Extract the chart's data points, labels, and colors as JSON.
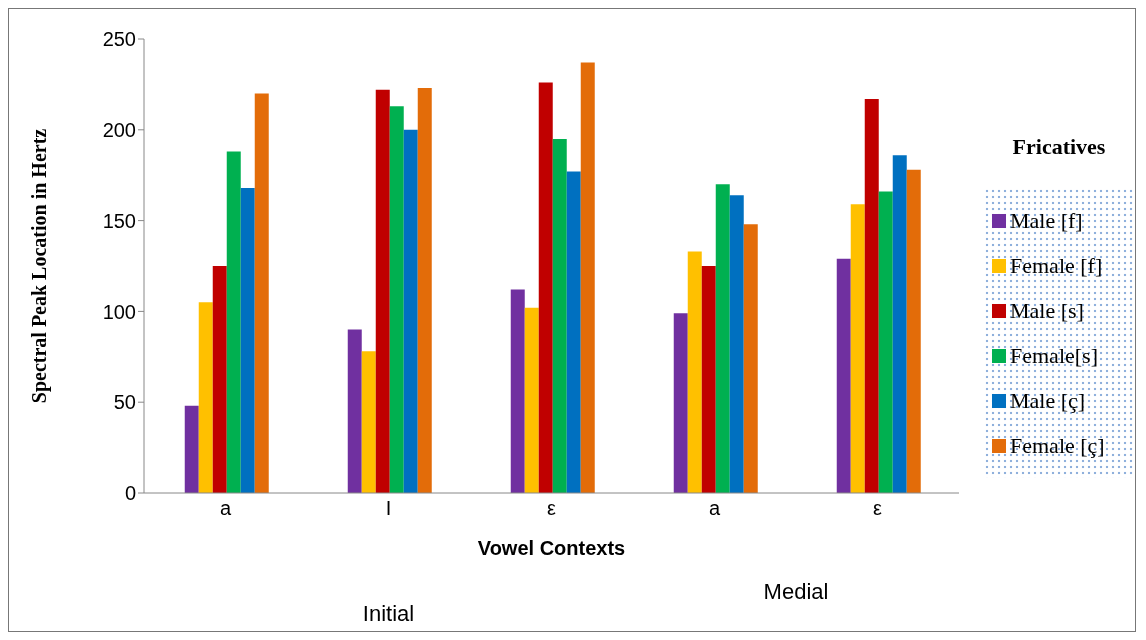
{
  "chart_data": {
    "type": "bar",
    "ylabel": "Spectral Peak Location in Hertz",
    "xlabel": "Vowel Contexts",
    "legend_title": "Fricatives",
    "categories": [
      "a",
      "I",
      "ε",
      "a",
      "ε"
    ],
    "series": [
      {
        "name": "Male [f]",
        "color": "#7030a0",
        "values": [
          48,
          90,
          112,
          99,
          129
        ]
      },
      {
        "name": "Female [f]",
        "color": "#ffc000",
        "values": [
          105,
          78,
          102,
          133,
          159
        ]
      },
      {
        "name": "Male [s]",
        "color": "#c00000",
        "values": [
          125,
          222,
          226,
          125,
          217
        ]
      },
      {
        "name": "Female[s]",
        "color": "#00b050",
        "values": [
          188,
          213,
          195,
          170,
          166
        ]
      },
      {
        "name": "Male [ç]",
        "color": "#0070c0",
        "values": [
          168,
          200,
          177,
          164,
          186
        ]
      },
      {
        "name": "Female [ç]",
        "color": "#e36c09",
        "values": [
          220,
          223,
          237,
          148,
          178
        ]
      }
    ],
    "annotations": [
      "Initial",
      "Medial"
    ],
    "ylim": [
      0,
      250
    ],
    "yticks": [
      0,
      50,
      100,
      150,
      200,
      250
    ],
    "grid": false,
    "legend": "right"
  }
}
